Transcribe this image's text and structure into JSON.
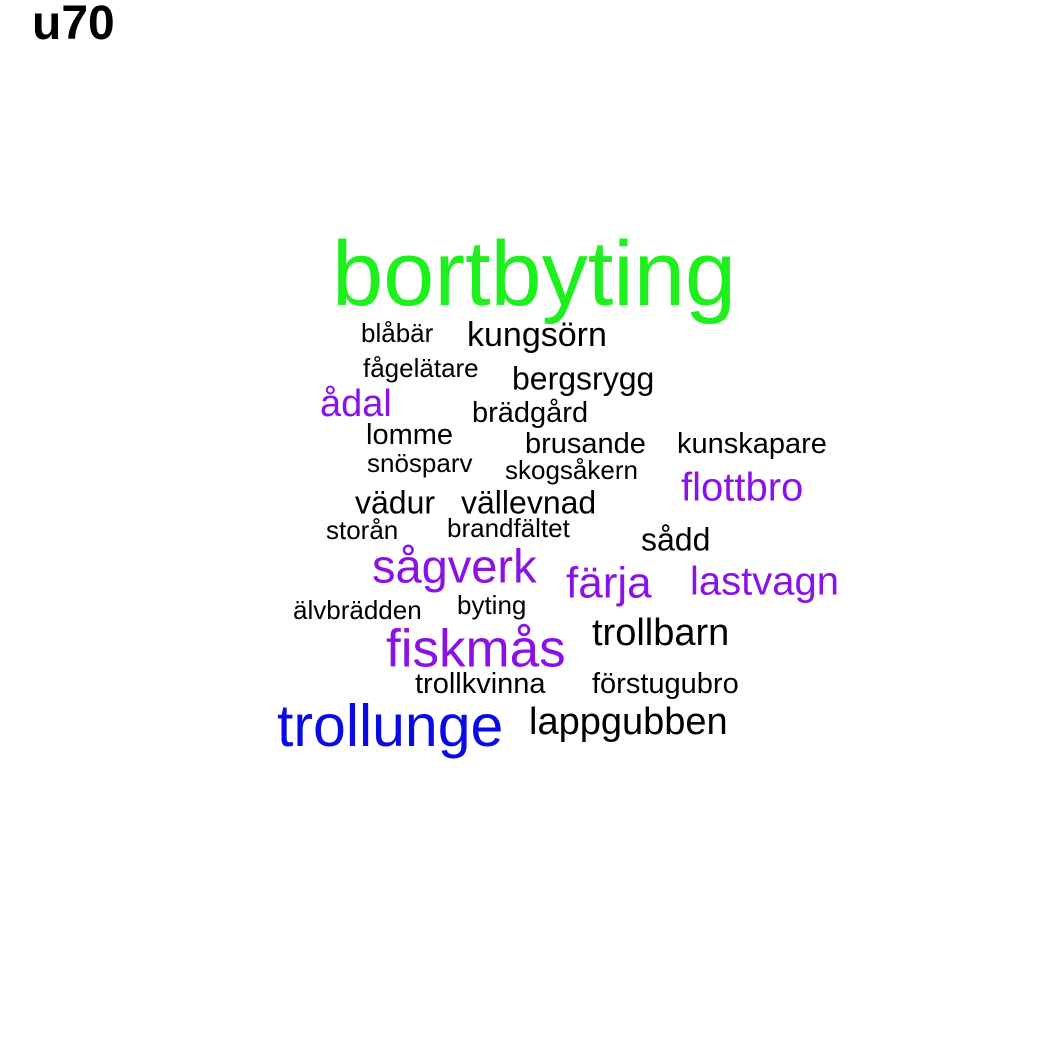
{
  "title": "u70",
  "colors": {
    "green": "#1EF01E",
    "blue": "#0A0AE6",
    "purple": "#8B12E6",
    "black": "#000000"
  },
  "words": [
    {
      "text": "bortbyting",
      "color": "green"
    },
    {
      "text": "blåbär",
      "color": "black"
    },
    {
      "text": "kungsörn",
      "color": "black"
    },
    {
      "text": "fågelätare",
      "color": "black"
    },
    {
      "text": "bergsrygg",
      "color": "black"
    },
    {
      "text": "ådal",
      "color": "purple"
    },
    {
      "text": "brädgård",
      "color": "black"
    },
    {
      "text": "lomme",
      "color": "black"
    },
    {
      "text": "brusande",
      "color": "black"
    },
    {
      "text": "kunskapare",
      "color": "black"
    },
    {
      "text": "snösparv",
      "color": "black"
    },
    {
      "text": "skogsåkern",
      "color": "black"
    },
    {
      "text": "flottbro",
      "color": "purple"
    },
    {
      "text": "vädur",
      "color": "black"
    },
    {
      "text": "vällevnad",
      "color": "black"
    },
    {
      "text": "storån",
      "color": "black"
    },
    {
      "text": "brandfältet",
      "color": "black"
    },
    {
      "text": "sådd",
      "color": "black"
    },
    {
      "text": "sågverk",
      "color": "purple"
    },
    {
      "text": "färja",
      "color": "purple"
    },
    {
      "text": "lastvagn",
      "color": "purple"
    },
    {
      "text": "älvbrädden",
      "color": "black"
    },
    {
      "text": "byting",
      "color": "black"
    },
    {
      "text": "fiskmås",
      "color": "purple"
    },
    {
      "text": "trollbarn",
      "color": "black"
    },
    {
      "text": "trollkvinna",
      "color": "black"
    },
    {
      "text": "förstugubro",
      "color": "black"
    },
    {
      "text": "trollunge",
      "color": "blue"
    },
    {
      "text": "lappgubben",
      "color": "black"
    }
  ]
}
